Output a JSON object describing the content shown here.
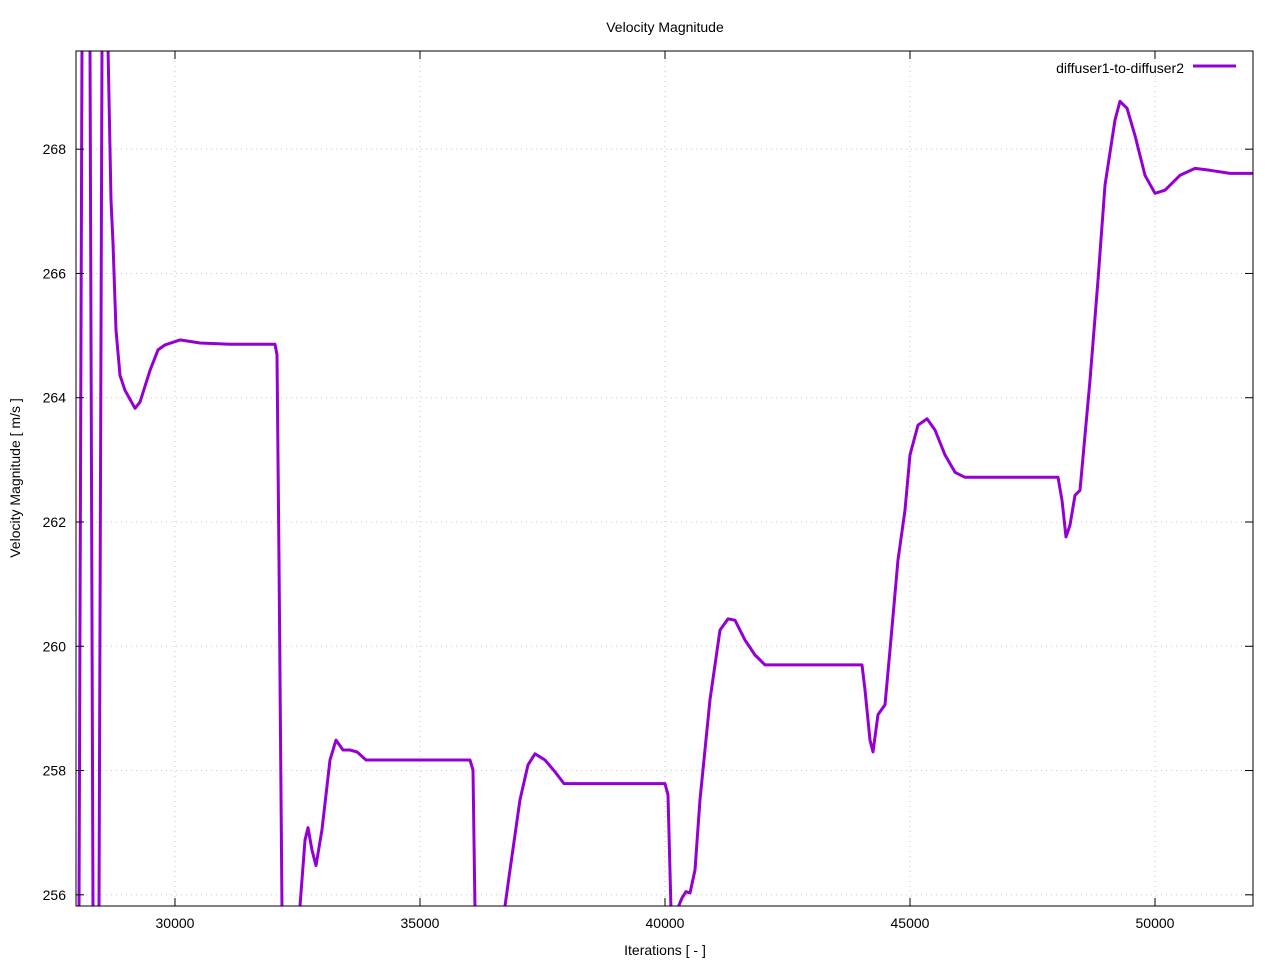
{
  "chart_data": {
    "type": "line",
    "title": "Velocity Magnitude",
    "xlabel": "Iterations [ - ]",
    "ylabel": "Velocity Magnitude [ m/s ]",
    "xlim": [
      27980,
      52000
    ],
    "ylim": [
      255.82,
      269.58
    ],
    "xticks": [
      30000,
      35000,
      40000,
      45000,
      50000
    ],
    "yticks": [
      256,
      258,
      260,
      262,
      264,
      266,
      268
    ],
    "grid": true,
    "legend_position": "top-right",
    "series": [
      {
        "name": "diffuser1-to-diffuser2",
        "color": "#9400d3",
        "x": [
          28041,
          28102,
          28265,
          28326,
          28449,
          28510,
          28633,
          28694,
          28735,
          28796,
          28878,
          28980,
          29184,
          29286,
          29490,
          29653,
          29796,
          30102,
          30510,
          31122,
          32041,
          32082,
          32122,
          32184,
          32449,
          32551,
          32653,
          32714,
          32796,
          32878,
          33000,
          33164,
          33286,
          33429,
          33572,
          33714,
          33898,
          36021,
          36082,
          36122,
          36633,
          36735,
          36837,
          37041,
          37204,
          37347,
          37551,
          37755,
          37939,
          40000,
          40061,
          40122,
          40245,
          40347,
          40429,
          40510,
          40612,
          40714,
          40918,
          41122,
          41286,
          41429,
          41633,
          41837,
          42041,
          44020,
          44082,
          44184,
          44245,
          44347,
          44490,
          44592,
          44755,
          44898,
          45000,
          45163,
          45347,
          45510,
          45714,
          45918,
          46122,
          48020,
          48102,
          48184,
          48265,
          48367,
          48469,
          48673,
          48837,
          48980,
          49184,
          49286,
          49429,
          49592,
          49796,
          50000,
          50204,
          50510,
          50816,
          51122,
          51531,
          52000
        ],
        "y": [
          252.7,
          272.0,
          272.0,
          252.7,
          252.7,
          272.0,
          272.0,
          267.18,
          266.49,
          265.09,
          264.36,
          264.12,
          263.83,
          263.93,
          264.44,
          264.77,
          264.85,
          264.93,
          264.88,
          264.86,
          264.86,
          264.69,
          261.39,
          254.3,
          254.3,
          255.82,
          256.88,
          257.08,
          256.72,
          256.47,
          257.05,
          258.17,
          258.49,
          258.33,
          258.33,
          258.3,
          258.17,
          258.17,
          258.01,
          254.3,
          254.3,
          255.82,
          256.4,
          257.53,
          258.09,
          258.27,
          258.17,
          257.98,
          257.79,
          257.79,
          257.61,
          254.3,
          254.3,
          255.95,
          256.05,
          256.03,
          256.4,
          257.53,
          259.14,
          260.26,
          260.44,
          260.42,
          260.1,
          259.86,
          259.7,
          259.7,
          259.3,
          258.49,
          258.3,
          258.9,
          259.06,
          259.94,
          261.39,
          262.19,
          263.08,
          263.56,
          263.66,
          263.48,
          263.08,
          262.8,
          262.72,
          262.72,
          262.35,
          261.76,
          261.95,
          262.43,
          262.51,
          264.28,
          265.89,
          267.42,
          268.47,
          268.77,
          268.66,
          268.22,
          267.58,
          267.29,
          267.34,
          267.58,
          267.69,
          267.66,
          267.61,
          267.61
        ]
      }
    ]
  }
}
